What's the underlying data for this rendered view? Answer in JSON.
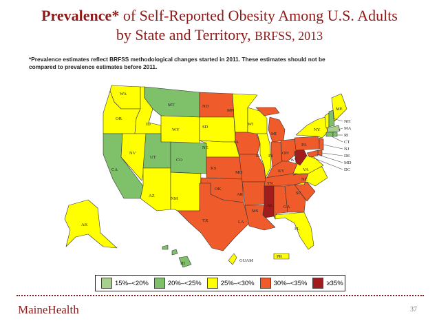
{
  "header": {
    "title_part1": "Prevalence*",
    "title_part2": " of Self-Reported Obesity Among U.S. Adults",
    "title_line2a": "by State and Territory, ",
    "title_line2b": "BRFSS, 2013"
  },
  "footnote": {
    "line1": "*Prevalence estimates reflect BRFSS methodological changes started in 2011. These estimates should not be",
    "line2": "compared to prevalence estimates before 2011."
  },
  "colors": {
    "c1": "#a8d08d",
    "c2": "#7fc06a",
    "c3": "#ffff00",
    "c4": "#ef5b2a",
    "c5": "#a11d1d"
  },
  "legend": [
    {
      "label": "15%–<20%",
      "color": "#a8d08d"
    },
    {
      "label": "20%–<25%",
      "color": "#7fc06a"
    },
    {
      "label": "25%–<30%",
      "color": "#ffff00"
    },
    {
      "label": "30%–<35%",
      "color": "#ef5b2a"
    },
    {
      "label": "≥35%",
      "color": "#a11d1d"
    }
  ],
  "states": {
    "WA": "WA",
    "OR": "OR",
    "CA": "CA",
    "ID": "ID",
    "NV": "NV",
    "MT": "MT",
    "WY": "WY",
    "UT": "UT",
    "AZ": "AZ",
    "CO": "CO",
    "NM": "NM",
    "ND": "ND",
    "SD": "SD",
    "NE": "NE",
    "KS": "KS",
    "OK": "OK",
    "TX": "TX",
    "MN": "MN",
    "IA": "IA",
    "MO": "MO",
    "AR": "AR",
    "LA": "LA",
    "WI": "WI",
    "IL": "IL",
    "MI": "MI",
    "IN": "IN",
    "OH": "OH",
    "KY": "KY",
    "TN": "TN",
    "MS": "MS",
    "AL": "AL",
    "GA": "GA",
    "FL": "FL",
    "SC": "SC",
    "NC": "NC",
    "VA": "VA",
    "WV": "WV",
    "PA": "PA",
    "NY": "NY",
    "ME": "ME",
    "NH": "NH",
    "MA": "MA",
    "RI": "RI",
    "CT": "CT",
    "NJ": "NJ",
    "DE": "DE",
    "MD": "MD",
    "DC": "DC",
    "AK": "AK",
    "HI": "HI",
    "GUAM": "GUAM",
    "PR": "PR"
  },
  "footer": {
    "brand": "MaineHealth",
    "page": "37"
  }
}
